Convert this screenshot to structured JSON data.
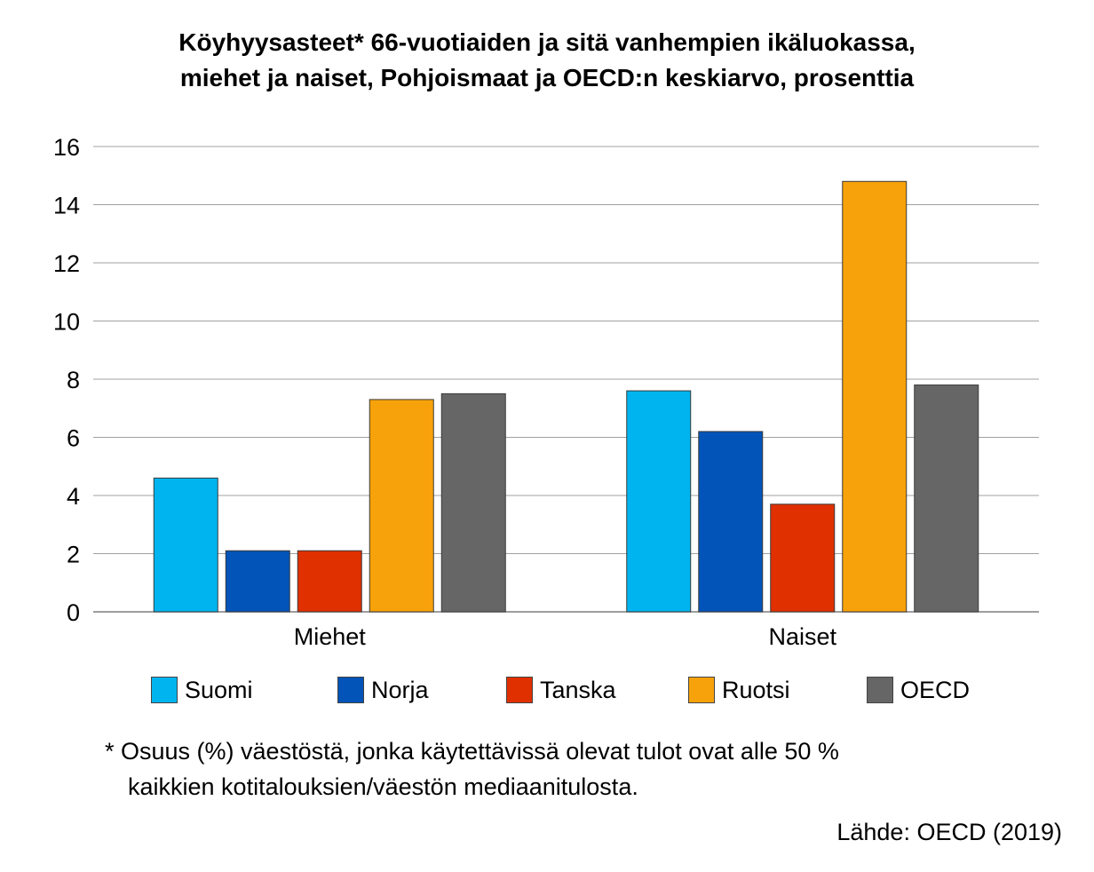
{
  "chart_data": {
    "type": "bar",
    "title_line1": "Köyhyysasteet* 66-vuotiaiden ja sitä vanhempien ikäluokassa,",
    "title_line2": "miehet ja naiset, Pohjoismaat ja OECD:n keskiarvo, prosenttia",
    "categories": [
      "Miehet",
      "Naiset"
    ],
    "series": [
      {
        "name": "Suomi",
        "color": "#00b4f0",
        "values": [
          4.6,
          7.6
        ]
      },
      {
        "name": "Norja",
        "color": "#0354b8",
        "values": [
          2.1,
          6.2
        ]
      },
      {
        "name": "Tanska",
        "color": "#e03000",
        "values": [
          2.1,
          3.7
        ]
      },
      {
        "name": "Ruotsi",
        "color": "#f7a20a",
        "values": [
          7.3,
          14.8
        ]
      },
      {
        "name": "OECD",
        "color": "#666666",
        "values": [
          7.5,
          7.8
        ]
      }
    ],
    "ylim": [
      0,
      16
    ],
    "yticks": [
      "0",
      "2",
      "4",
      "6",
      "8",
      "10",
      "12",
      "14",
      "16"
    ],
    "grid": true,
    "legend_position": "bottom"
  },
  "footnote": {
    "line1": "* Osuus (%) väestöstä, jonka käytettävissä olevat tulot ovat alle 50 %",
    "line2": "kaikkien kotitalouksien/väestön mediaanitulosta."
  },
  "source": "Lähde: OECD (2019)"
}
